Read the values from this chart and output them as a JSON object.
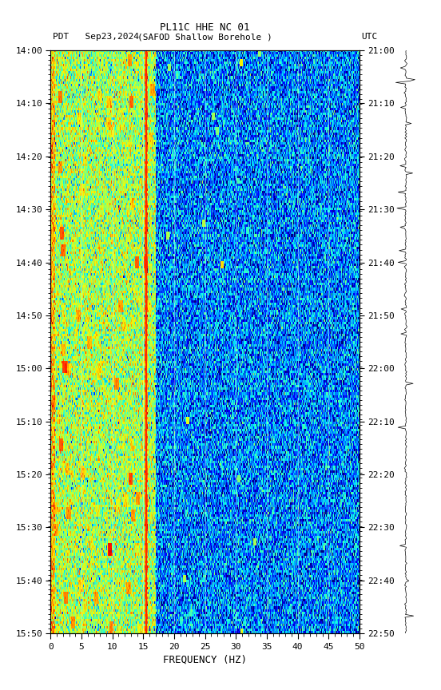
{
  "title_line1": "PL11C HHE NC 01",
  "title_line2_left": "PDT   Sep23,2024",
  "title_line2_center": "(SAFOD Shallow Borehole )",
  "title_line2_right": "UTC",
  "xlabel": "FREQUENCY (HZ)",
  "freq_min": 0,
  "freq_max": 50,
  "freq_ticks": [
    0,
    5,
    10,
    15,
    20,
    25,
    30,
    35,
    40,
    45,
    50
  ],
  "time_left_labels": [
    "14:00",
    "14:10",
    "14:20",
    "14:30",
    "14:40",
    "14:50",
    "15:00",
    "15:10",
    "15:20",
    "15:30",
    "15:40",
    "15:50"
  ],
  "time_right_labels": [
    "21:00",
    "21:10",
    "21:20",
    "21:30",
    "21:40",
    "21:50",
    "22:00",
    "22:10",
    "22:20",
    "22:30",
    "22:40",
    "22:50"
  ],
  "vline_freq": 15.5,
  "vertical_lines": [
    5,
    10,
    15,
    20,
    25,
    30,
    35,
    40,
    45
  ],
  "background_color": "#ffffff",
  "colormap": "jet",
  "num_time_bins": 240,
  "num_freq_bins": 500,
  "seed": 42,
  "low_freq_cutoff_hz": 17,
  "red_line_freq_hz": 15.5,
  "figure_width": 5.52,
  "figure_height": 8.64,
  "dpi": 100
}
